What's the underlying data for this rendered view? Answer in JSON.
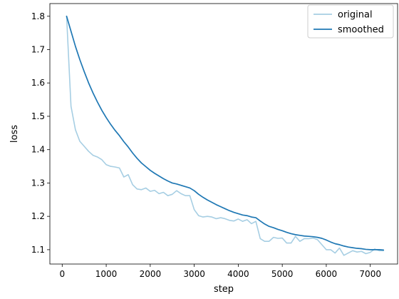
{
  "chart_data": {
    "type": "line",
    "title": "",
    "xlabel": "step",
    "ylabel": "loss",
    "xlim": [
      -280,
      7620
    ],
    "ylim": [
      1.057,
      1.838
    ],
    "xticks": [
      0,
      1000,
      2000,
      3000,
      4000,
      5000,
      6000,
      7000
    ],
    "yticks": [
      1.1,
      1.2,
      1.3,
      1.4,
      1.5,
      1.6,
      1.7,
      1.8
    ],
    "xtick_labels": [
      "0",
      "1000",
      "2000",
      "3000",
      "4000",
      "5000",
      "6000",
      "7000"
    ],
    "ytick_labels": [
      "1.1",
      "1.2",
      "1.3",
      "1.4",
      "1.5",
      "1.6",
      "1.7",
      "1.8"
    ],
    "grid": false,
    "legend": "top-right",
    "series": [
      {
        "name": "original",
        "color": "#a6cee3",
        "x": [
          100,
          200,
          300,
          400,
          500,
          600,
          700,
          800,
          900,
          1000,
          1100,
          1200,
          1300,
          1400,
          1500,
          1600,
          1700,
          1800,
          1900,
          2000,
          2100,
          2200,
          2300,
          2400,
          2500,
          2600,
          2700,
          2800,
          2900,
          3000,
          3100,
          3200,
          3300,
          3400,
          3500,
          3600,
          3700,
          3800,
          3900,
          4000,
          4100,
          4200,
          4300,
          4400,
          4500,
          4600,
          4700,
          4800,
          4900,
          5000,
          5100,
          5200,
          5300,
          5400,
          5500,
          5600,
          5700,
          5800,
          5900,
          6000,
          6100,
          6200,
          6300,
          6400,
          6500,
          6600,
          6700,
          6800,
          6900,
          7000,
          7100,
          7200,
          7300
        ],
        "y": [
          1.8,
          1.53,
          1.46,
          1.425,
          1.41,
          1.395,
          1.383,
          1.378,
          1.37,
          1.355,
          1.35,
          1.348,
          1.345,
          1.318,
          1.325,
          1.295,
          1.282,
          1.28,
          1.285,
          1.275,
          1.278,
          1.268,
          1.272,
          1.262,
          1.266,
          1.277,
          1.268,
          1.262,
          1.262,
          1.22,
          1.202,
          1.198,
          1.2,
          1.198,
          1.193,
          1.196,
          1.193,
          1.188,
          1.186,
          1.192,
          1.185,
          1.19,
          1.178,
          1.185,
          1.133,
          1.125,
          1.125,
          1.137,
          1.134,
          1.135,
          1.12,
          1.12,
          1.14,
          1.125,
          1.133,
          1.133,
          1.135,
          1.13,
          1.115,
          1.1,
          1.1,
          1.09,
          1.105,
          1.083,
          1.09,
          1.097,
          1.093,
          1.095,
          1.088,
          1.092,
          1.102,
          1.097,
          1.097
        ]
      },
      {
        "name": "smoothed",
        "color": "#1f78b4",
        "x": [
          100,
          200,
          300,
          400,
          500,
          600,
          700,
          800,
          900,
          1000,
          1100,
          1200,
          1300,
          1400,
          1500,
          1600,
          1700,
          1800,
          1900,
          2000,
          2100,
          2200,
          2300,
          2400,
          2500,
          2600,
          2700,
          2800,
          2900,
          3000,
          3100,
          3200,
          3300,
          3400,
          3500,
          3600,
          3700,
          3800,
          3900,
          4000,
          4100,
          4200,
          4300,
          4400,
          4500,
          4600,
          4700,
          4800,
          4900,
          5000,
          5100,
          5200,
          5300,
          5400,
          5500,
          5600,
          5700,
          5800,
          5900,
          6000,
          6100,
          6200,
          6300,
          6400,
          6500,
          6600,
          6700,
          6800,
          6900,
          7000,
          7100,
          7200,
          7300
        ],
        "y": [
          1.8,
          1.755,
          1.71,
          1.67,
          1.634,
          1.6,
          1.57,
          1.543,
          1.518,
          1.496,
          1.476,
          1.458,
          1.442,
          1.424,
          1.408,
          1.39,
          1.374,
          1.36,
          1.349,
          1.338,
          1.329,
          1.321,
          1.313,
          1.306,
          1.3,
          1.297,
          1.293,
          1.289,
          1.285,
          1.277,
          1.266,
          1.257,
          1.249,
          1.242,
          1.235,
          1.229,
          1.223,
          1.217,
          1.212,
          1.208,
          1.204,
          1.202,
          1.198,
          1.196,
          1.186,
          1.177,
          1.17,
          1.166,
          1.161,
          1.157,
          1.152,
          1.148,
          1.145,
          1.143,
          1.141,
          1.14,
          1.139,
          1.137,
          1.134,
          1.129,
          1.123,
          1.118,
          1.115,
          1.111,
          1.108,
          1.106,
          1.104,
          1.103,
          1.101,
          1.1,
          1.1,
          1.1,
          1.099
        ]
      }
    ]
  }
}
